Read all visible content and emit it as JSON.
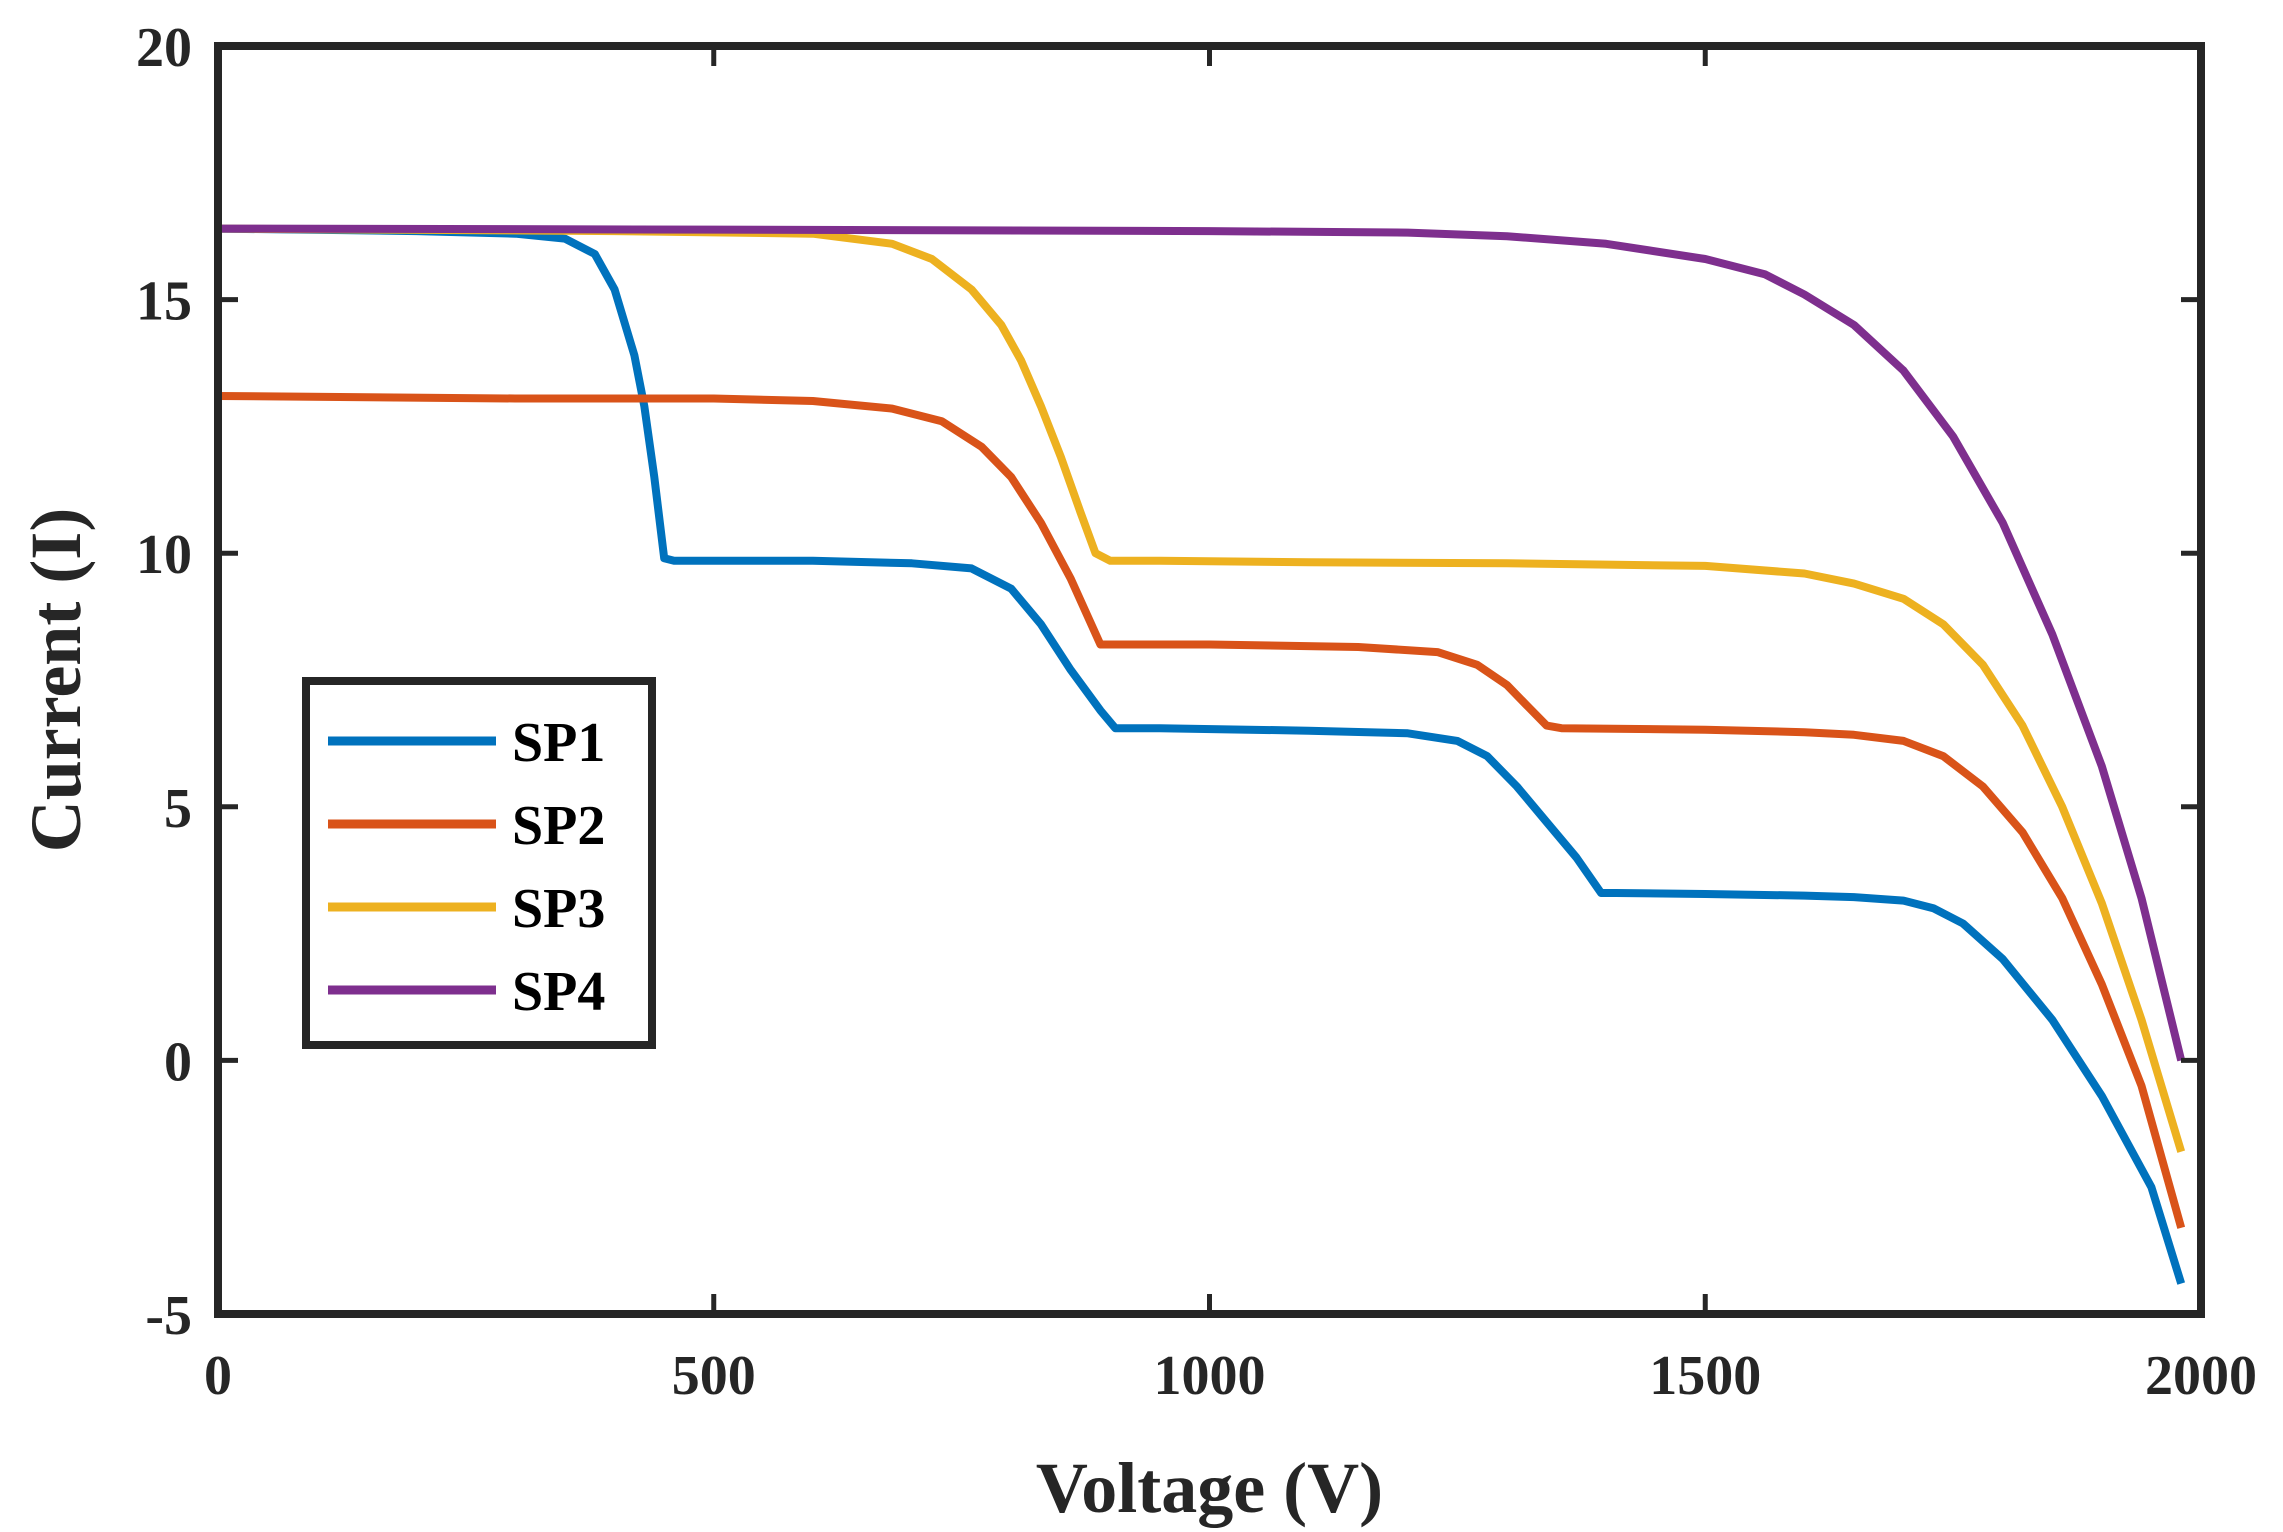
{
  "chart_data": {
    "type": "line",
    "title": "",
    "xlabel": "Voltage (V)",
    "ylabel": "Current (I)",
    "xlim": [
      0,
      2000
    ],
    "ylim": [
      -5,
      20
    ],
    "xticks": [
      0,
      500,
      1000,
      1500,
      2000
    ],
    "yticks": [
      -5,
      0,
      5,
      10,
      15,
      20
    ],
    "xtick_labels": [
      "0",
      "500",
      "1000",
      "1500",
      "2000"
    ],
    "ytick_labels": [
      "-5",
      "0",
      "5",
      "10",
      "15",
      "20"
    ],
    "grid": false,
    "legend_position": "center-left",
    "series": [
      {
        "name": "SP1",
        "color": "#0072BD",
        "x": [
          0,
          200,
          300,
          350,
          380,
          400,
          420,
          430,
          440,
          450,
          460,
          600,
          700,
          760,
          800,
          830,
          860,
          890,
          905,
          950,
          1100,
          1200,
          1250,
          1280,
          1310,
          1340,
          1370,
          1395,
          1410,
          1500,
          1600,
          1650,
          1700,
          1730,
          1760,
          1800,
          1850,
          1900,
          1950,
          1980
        ],
        "y": [
          16.4,
          16.35,
          16.3,
          16.2,
          15.9,
          15.2,
          13.9,
          12.9,
          11.5,
          9.9,
          9.85,
          9.85,
          9.8,
          9.7,
          9.3,
          8.6,
          7.7,
          6.9,
          6.55,
          6.55,
          6.5,
          6.45,
          6.3,
          6.0,
          5.4,
          4.7,
          4.0,
          3.3,
          3.3,
          3.28,
          3.25,
          3.22,
          3.15,
          3.0,
          2.7,
          2.0,
          0.8,
          -0.7,
          -2.5,
          -4.4
        ]
      },
      {
        "name": "SP2",
        "color": "#D95319",
        "x": [
          0,
          300,
          500,
          600,
          680,
          730,
          770,
          800,
          830,
          860,
          890,
          905,
          1000,
          1150,
          1230,
          1270,
          1300,
          1320,
          1340,
          1355,
          1500,
          1600,
          1650,
          1700,
          1740,
          1780,
          1820,
          1860,
          1900,
          1940,
          1980
        ],
        "y": [
          13.1,
          13.05,
          13.05,
          13.0,
          12.85,
          12.6,
          12.1,
          11.5,
          10.6,
          9.5,
          8.2,
          8.2,
          8.2,
          8.15,
          8.05,
          7.8,
          7.4,
          7.0,
          6.6,
          6.55,
          6.52,
          6.47,
          6.42,
          6.3,
          6.0,
          5.4,
          4.5,
          3.2,
          1.5,
          -0.5,
          -3.3
        ]
      },
      {
        "name": "SP3",
        "color": "#EDB120",
        "x": [
          0,
          400,
          600,
          680,
          720,
          760,
          790,
          810,
          830,
          850,
          870,
          885,
          900,
          950,
          1100,
          1300,
          1500,
          1600,
          1650,
          1700,
          1740,
          1780,
          1820,
          1860,
          1900,
          1940,
          1980
        ],
        "y": [
          16.4,
          16.35,
          16.3,
          16.1,
          15.8,
          15.2,
          14.5,
          13.8,
          12.9,
          11.9,
          10.8,
          10.0,
          9.85,
          9.85,
          9.82,
          9.8,
          9.75,
          9.6,
          9.4,
          9.1,
          8.6,
          7.8,
          6.6,
          5.0,
          3.1,
          0.8,
          -1.8
        ]
      },
      {
        "name": "SP4",
        "color": "#7E2F8E",
        "x": [
          0,
          500,
          1000,
          1200,
          1300,
          1400,
          1500,
          1560,
          1600,
          1650,
          1700,
          1750,
          1800,
          1850,
          1900,
          1940,
          1980
        ],
        "y": [
          16.4,
          16.38,
          16.35,
          16.32,
          16.25,
          16.1,
          15.8,
          15.5,
          15.1,
          14.5,
          13.6,
          12.3,
          10.6,
          8.4,
          5.8,
          3.2,
          0.0
        ]
      }
    ]
  }
}
